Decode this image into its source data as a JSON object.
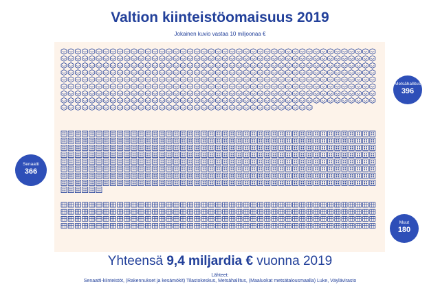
{
  "title": "Valtion kiinteistöomaisuus 2019",
  "subtitle": "Jokainen kuvio vastaa 10 miljoonaa €",
  "total": {
    "prefix": "Yhteensä ",
    "amount": "9,4 miljardia €",
    "suffix": " vuonna 2019"
  },
  "sources_label": "Lähteet:",
  "sources": "Senaatti-kiinteistöt, (Rakennukset ja kesämökit) Tilastokeskus, Metsähallitus,  (Maaluokat metsätalousmaalla) Luke, Väylävirasto",
  "colors": {
    "primary": "#22409a",
    "callout": "#2e4fb8",
    "panel": "#fdf3ea"
  },
  "chart_data": {
    "type": "pictogram",
    "unit_value": 10,
    "unit": "miljoonaa €",
    "series": [
      {
        "name": "Metsähallitus",
        "label": "Metsähallitus",
        "value": 396,
        "icon": "forest-land-icon"
      },
      {
        "name": "Senaatti",
        "label": "Senaatti",
        "value": 366,
        "icon": "office-building-icon"
      },
      {
        "name": "Muut",
        "label": "Muut",
        "value": 180,
        "icon": "mixed-property-icon"
      }
    ]
  }
}
